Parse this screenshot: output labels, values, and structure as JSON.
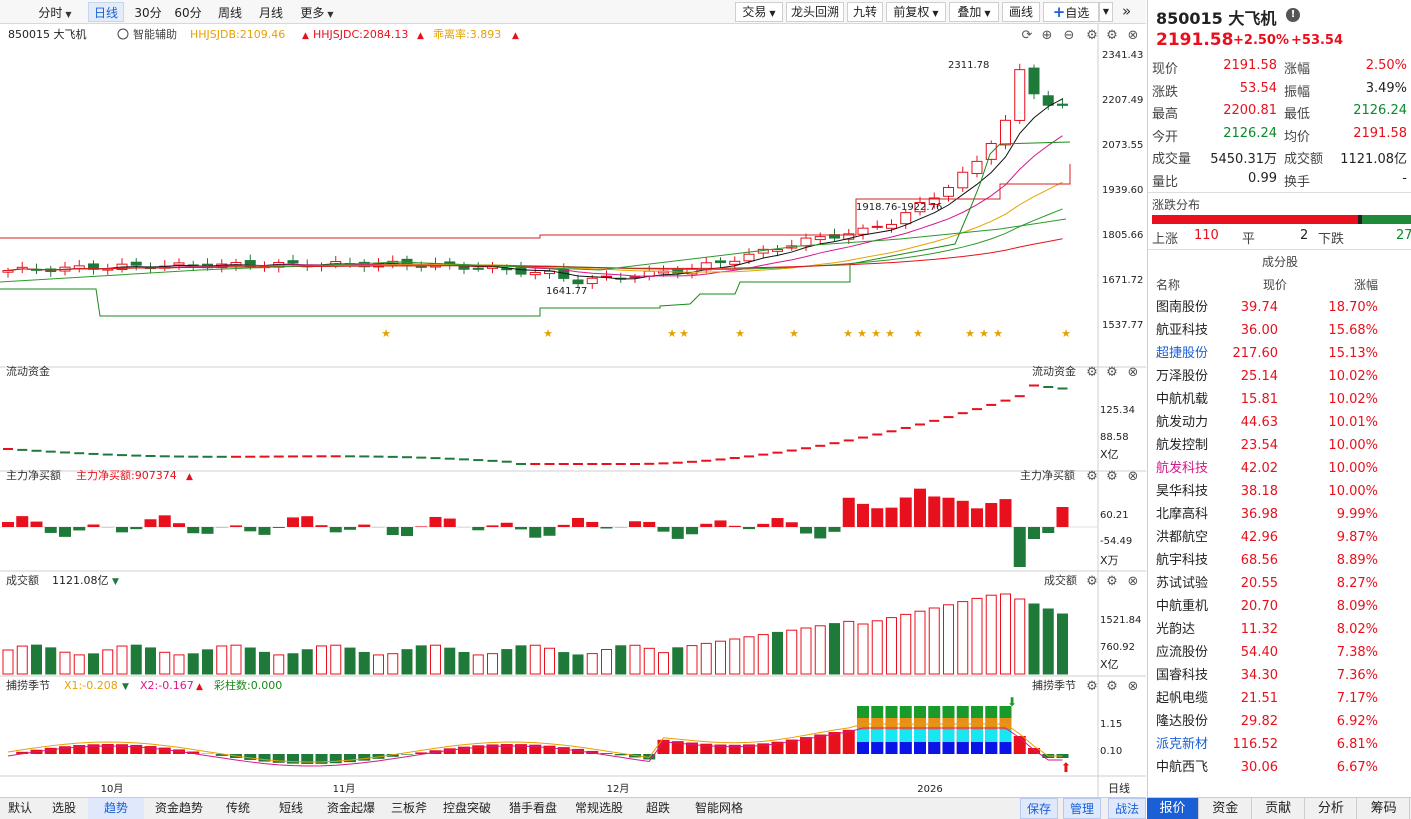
{
  "toolbar": {
    "periods": [
      {
        "label": "分时",
        "dd": true
      },
      {
        "label": "日线",
        "active": true
      },
      {
        "label": "30分"
      },
      {
        "label": "60分"
      },
      {
        "label": "周线"
      },
      {
        "label": "月线"
      },
      {
        "label": "更多",
        "dd": true
      }
    ],
    "right_buttons": [
      {
        "label": "交易",
        "dd": true
      },
      {
        "label": "龙头回溯"
      },
      {
        "label": "九转"
      },
      {
        "label": "前复权",
        "dd": true
      },
      {
        "label": "叠加",
        "dd": true
      },
      {
        "label": "画线"
      }
    ],
    "watch_label": "自选",
    "plus": "+"
  },
  "main_chart": {
    "code_name": "850015 大飞机",
    "assist": "智能辅助",
    "ind1": "HHJSJDB:2109.46",
    "ind2": "HHJSJDC:2084.13",
    "ind3": "乖离率:3.893",
    "ticks": [
      "2341.43",
      "2207.49",
      "2073.55",
      "1939.60",
      "1805.66",
      "1671.72",
      "1537.77"
    ],
    "high_label": "2311.78",
    "low_label": "1641.77",
    "mid_label": "1918.76-1922.76"
  },
  "liquidity": {
    "title": "流动资金",
    "title_right": "流动资金",
    "ticks": [
      "125.34",
      "88.58"
    ],
    "unit": "X亿"
  },
  "mainflow": {
    "title": "主力净买额",
    "ind": "主力净买额:907374",
    "title_right": "主力净买额",
    "ticks": [
      "60.21",
      "-54.49"
    ],
    "unit": "X万"
  },
  "volume": {
    "title": "成交额",
    "ind": "1121.08亿",
    "title_right": "成交额",
    "ticks": [
      "1521.84",
      "760.92"
    ],
    "unit": "X亿"
  },
  "season": {
    "title": "捕捞季节",
    "x1": "X1:-0.208",
    "x2": "X2:-0.167",
    "bar": "彩柱数:0.000",
    "title_right": "捕捞季节",
    "ticks": [
      "1.15",
      "0.10"
    ]
  },
  "xaxis": {
    "labels": [
      "10月",
      "11月",
      "12月",
      "2026"
    ],
    "right_label": "日线"
  },
  "bottom_tabs": [
    "默认",
    "选股",
    "趋势",
    "资金趋势",
    "传统",
    "短线",
    "资金起爆",
    "三板斧",
    "控盘突破",
    "猎手看盘",
    "常规选股",
    "超跌",
    "智能网格"
  ],
  "bottom_active": "趋势",
  "bottom_right": [
    "保存",
    "管理",
    "战法"
  ],
  "quote": {
    "title": "850015 大飞机",
    "price": "2191.58",
    "pct": "+2.50%",
    "chg": "+53.54",
    "rows": [
      [
        "现价",
        "2191.58",
        "red",
        "涨幅",
        "2.50%",
        "red"
      ],
      [
        "涨跌",
        "53.54",
        "red",
        "振幅",
        "3.49%",
        "black"
      ],
      [
        "最高",
        "2200.81",
        "red",
        "最低",
        "2126.24",
        "grn"
      ],
      [
        "今开",
        "2126.24",
        "grn",
        "均价",
        "2191.58",
        "red"
      ],
      [
        "成交量",
        "5450.31万",
        "black",
        "成交额",
        "1121.08亿",
        "black"
      ],
      [
        "量比",
        "0.99",
        "black",
        "换手",
        "-",
        "black"
      ]
    ],
    "dist_title": "涨跌分布",
    "up_label": "上涨",
    "up": "110",
    "flat_label": "平",
    "flat": "2",
    "down_label": "下跌",
    "down": "27",
    "comp_title": "成分股",
    "headers": [
      "名称",
      "现价",
      "涨幅"
    ],
    "stocks": [
      [
        "图南股份",
        "39.74",
        "18.70%",
        "black"
      ],
      [
        "航亚科技",
        "36.00",
        "15.68%",
        "black"
      ],
      [
        "超捷股份",
        "217.60",
        "15.13%",
        "blue"
      ],
      [
        "万泽股份",
        "25.14",
        "10.02%",
        "black"
      ],
      [
        "中航机载",
        "15.81",
        "10.02%",
        "black"
      ],
      [
        "航发动力",
        "44.63",
        "10.01%",
        "black"
      ],
      [
        "航发控制",
        "23.54",
        "10.00%",
        "black"
      ],
      [
        "航发科技",
        "42.02",
        "10.00%",
        "pink"
      ],
      [
        "昊华科技",
        "38.18",
        "10.00%",
        "black"
      ],
      [
        "北摩高科",
        "36.98",
        "9.99%",
        "black"
      ],
      [
        "洪都航空",
        "42.96",
        "9.87%",
        "black"
      ],
      [
        "航宇科技",
        "68.56",
        "8.89%",
        "black"
      ],
      [
        "苏试试验",
        "20.55",
        "8.27%",
        "black"
      ],
      [
        "中航重机",
        "20.70",
        "8.09%",
        "black"
      ],
      [
        "光韵达",
        "11.32",
        "8.02%",
        "black"
      ],
      [
        "应流股份",
        "54.40",
        "7.38%",
        "black"
      ],
      [
        "国睿科技",
        "34.30",
        "7.36%",
        "black"
      ],
      [
        "起帆电缆",
        "21.51",
        "7.17%",
        "black"
      ],
      [
        "隆达股份",
        "29.82",
        "6.92%",
        "black"
      ],
      [
        "派克新材",
        "116.52",
        "6.81%",
        "blue"
      ],
      [
        "中航西飞",
        "30.06",
        "6.67%",
        "black"
      ]
    ],
    "tabs": [
      "报价",
      "资金",
      "贡献",
      "分析",
      "筹码"
    ],
    "active_tab": "报价"
  },
  "colors": {
    "up": "#e8101c",
    "down": "#1f7a3a",
    "accent": "#1a5fd6"
  }
}
